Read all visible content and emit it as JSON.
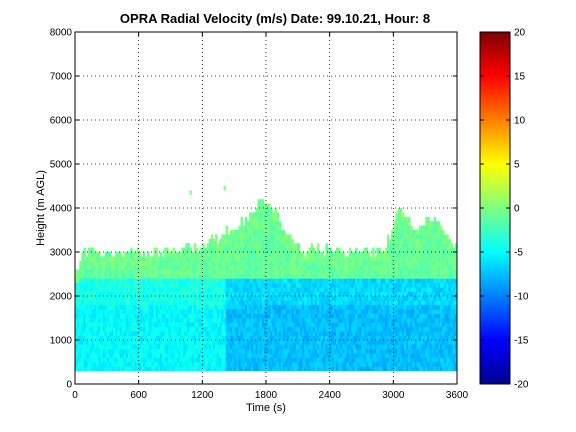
{
  "chart_data": {
    "type": "heatmap",
    "title": "OPRA Radial Velocity (m/s)  Date: 99.10.21, Hour: 8",
    "xlabel": "Time (s)",
    "ylabel": "Height (m AGL)",
    "xlim": [
      0,
      3600
    ],
    "ylim": [
      0,
      8000
    ],
    "xticks": [
      "0",
      "600",
      "1200",
      "1800",
      "2400",
      "3000",
      "3600"
    ],
    "yticks": [
      "0",
      "1000",
      "2000",
      "3000",
      "4000",
      "5000",
      "6000",
      "7000",
      "8000"
    ],
    "grid": true,
    "colorbar": {
      "min": -20,
      "max": 20,
      "ticks": [
        "20",
        "15",
        "10",
        "5",
        "0",
        "-5",
        "-10",
        "-15",
        "-20"
      ],
      "colormap": "jet"
    },
    "data_region": {
      "time_range_s": [
        0,
        3600
      ],
      "lowest_height_m": 300,
      "layers": [
        {
          "height_range_m": [
            300,
            1800
          ],
          "velocity_ms": -5
        },
        {
          "height_range_m": [
            1800,
            2400
          ],
          "velocity_ms": -4
        },
        {
          "height_range_m": [
            2400,
            3000
          ],
          "velocity_ms": -1
        }
      ],
      "echo_top_profile": [
        {
          "time_s": 0,
          "top_m": 2550
        },
        {
          "time_s": 100,
          "top_m": 3000
        },
        {
          "time_s": 400,
          "top_m": 2900
        },
        {
          "time_s": 800,
          "top_m": 2950
        },
        {
          "time_s": 1250,
          "top_m": 3150
        },
        {
          "time_s": 1500,
          "top_m": 3500
        },
        {
          "time_s": 1700,
          "top_m": 4000
        },
        {
          "time_s": 1800,
          "top_m": 4150
        },
        {
          "time_s": 1950,
          "top_m": 3500
        },
        {
          "time_s": 2150,
          "top_m": 3000
        },
        {
          "time_s": 2900,
          "top_m": 3000
        },
        {
          "time_s": 3050,
          "top_m": 3950
        },
        {
          "time_s": 3200,
          "top_m": 3500
        },
        {
          "time_s": 3350,
          "top_m": 3800
        },
        {
          "time_s": 3600,
          "top_m": 3050
        }
      ],
      "isolated_echoes": [
        {
          "time_s": 1080,
          "height_m": 4300
        },
        {
          "time_s": 1400,
          "height_m": 4400
        }
      ]
    }
  }
}
